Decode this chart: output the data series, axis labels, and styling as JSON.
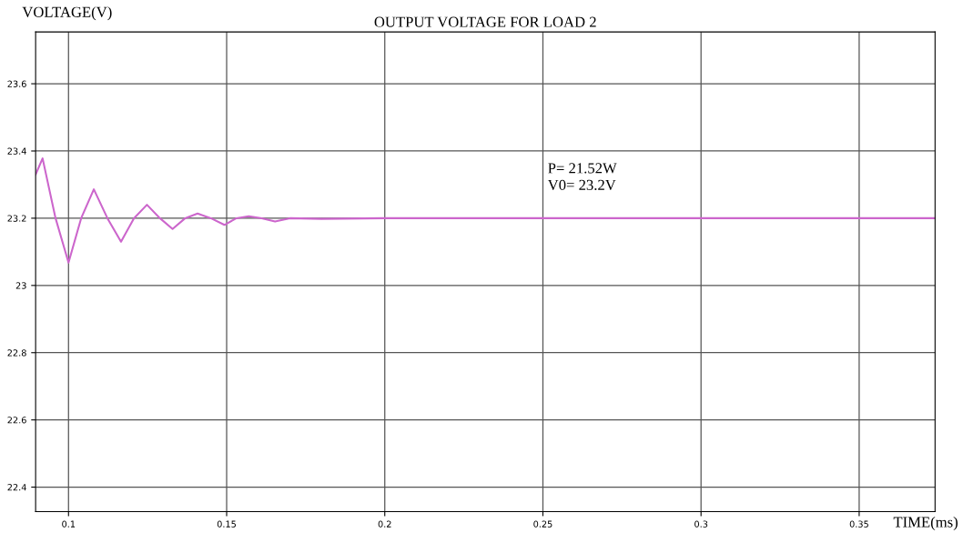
{
  "chart_data": {
    "type": "line",
    "title": "OUTPUT VOLTAGE FOR LOAD 2",
    "xlabel": "TIME(ms)",
    "ylabel": "VOLTAGE(V)",
    "annotations": [
      "P= 21.52W",
      "V0= 23.2V"
    ],
    "series": [
      {
        "color": "#cc66cc",
        "x": [
          0.0896,
          0.0918,
          0.0959,
          0.1,
          0.104,
          0.108,
          0.1123,
          0.1166,
          0.1207,
          0.1248,
          0.1289,
          0.1329,
          0.1369,
          0.1408,
          0.145,
          0.1493,
          0.1531,
          0.157,
          0.1611,
          0.1653,
          0.17,
          0.18,
          0.2,
          0.25,
          0.3,
          0.35,
          0.374
        ],
        "values": [
          23.33,
          23.378,
          23.2,
          23.068,
          23.2,
          23.286,
          23.2,
          23.13,
          23.2,
          23.24,
          23.2,
          23.168,
          23.2,
          23.214,
          23.2,
          23.18,
          23.2,
          23.206,
          23.2,
          23.19,
          23.2,
          23.198,
          23.2,
          23.2,
          23.2,
          23.2,
          23.2
        ]
      }
    ],
    "xlim": [
      0.0896,
      0.374
    ],
    "ylim": [
      22.327,
      23.754
    ],
    "xticks": [
      0.1,
      0.15,
      {
        "value": 0.2,
        "label": "0.2"
      },
      0.25,
      {
        "value": 0.3,
        "label": "0.3"
      },
      0.35
    ],
    "yticks": [
      22.4,
      22.6,
      22.8,
      {
        "value": 23.0,
        "label": "23"
      },
      23.2,
      23.4,
      23.6
    ],
    "grid": true,
    "marker": "none",
    "line_style": "solid"
  }
}
